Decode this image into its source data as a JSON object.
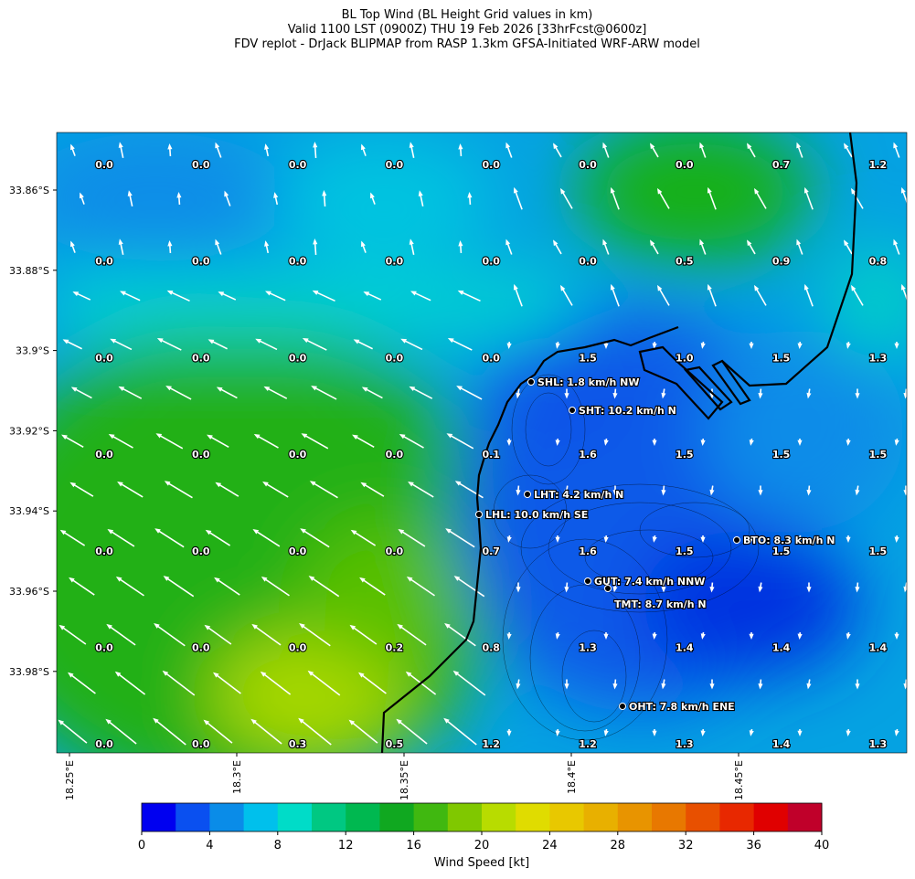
{
  "header": {
    "title_lines": [
      "BL Top Wind (BL Height Grid values in km)",
      "Valid 1100 LST (0900Z) THU 19 Feb 2026 [33hrFcst@0600z]",
      "FDV replot - DrJack BLIPMAP from RASP 1.3km GFSA-Initiated WRF-ARW model"
    ]
  },
  "latitude_labels": [
    "33.86°S",
    "33.88°S",
    "33.9°S",
    "33.92°S",
    "33.94°S",
    "33.96°S",
    "33.98°S"
  ],
  "longitude_labels": [
    "18.25°E",
    "18.3°E",
    "18.35°E",
    "18.4°E",
    "18.45°E"
  ],
  "grid_values": [
    [
      "0.0",
      "0.0",
      "0.0",
      "0.0",
      "0.0",
      "0.0",
      "0.0",
      "0.7",
      "1.2"
    ],
    [
      "0.0",
      "0.0",
      "0.0",
      "0.0",
      "0.0",
      "0.0",
      "0.5",
      "0.9",
      "0.8"
    ],
    [
      "0.0",
      "0.0",
      "0.0",
      "0.0",
      "0.0",
      "1.5",
      "1.0",
      "1.5",
      "1.3"
    ],
    [
      "0.0",
      "0.0",
      "0.0",
      "0.0",
      "0.1",
      "1.6",
      "1.5",
      "1.5",
      "1.5"
    ],
    [
      "0.0",
      "0.0",
      "0.0",
      "0.0",
      "0.7",
      "1.6",
      "1.5",
      "1.5",
      "1.5"
    ],
    [
      "0.0",
      "0.0",
      "0.0",
      "0.2",
      "0.8",
      "1.3",
      "1.4",
      "1.4",
      "1.4"
    ],
    [
      "0.0",
      "0.0",
      "0.3",
      "0.5",
      "1.2",
      "1.2",
      "1.3",
      "1.4",
      "1.3"
    ]
  ],
  "stations": [
    "SHL: 1.8 km/h NW",
    "SHT: 10.2 km/h N",
    "LHT: 4.2 km/h N",
    "LHL: 10.0 km/h SE",
    "BTO: 8.3 km/h N",
    "GUT: 7.4 km/h NNW",
    "TMT: 8.7 km/h N",
    "OHT: 7.8 km/h ENE"
  ],
  "colorbar": {
    "label": "Wind Speed [kt]",
    "range": [
      0,
      40
    ],
    "ticks": [
      0,
      4,
      8,
      12,
      16,
      20,
      24,
      28,
      32,
      36,
      40
    ],
    "colors": [
      "#0000f0",
      "#0a50f0",
      "#0a8ce8",
      "#00c0ec",
      "#00dcc8",
      "#00c882",
      "#00b850",
      "#10a820",
      "#40b810",
      "#80c800",
      "#b8dc00",
      "#e0dc00",
      "#e8c800",
      "#e8b000",
      "#e89400",
      "#e87800",
      "#e85000",
      "#e82800",
      "#e00000",
      "#c0002a"
    ]
  }
}
